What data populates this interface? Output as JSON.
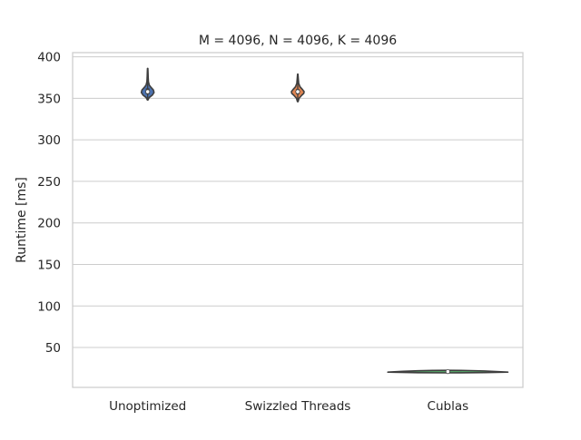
{
  "chart_data": {
    "type": "violin",
    "title": "M = 4096, N = 4096, K = 4096",
    "xlabel": "",
    "ylabel": "Runtime [ms]",
    "ylim": [
      2,
      405
    ],
    "yticks": [
      50,
      100,
      150,
      200,
      250,
      300,
      350,
      400
    ],
    "grid": true,
    "categories": [
      "Unoptimized",
      "Swizzled Threads",
      "Cublas"
    ],
    "series": [
      {
        "category": "Unoptimized",
        "color": "#4c72b0",
        "min": 348,
        "q1": 355,
        "median": 358,
        "q3": 362,
        "max": 386,
        "density": [
          [
            348,
            0.05
          ],
          [
            351,
            0.25
          ],
          [
            354,
            0.75
          ],
          [
            357,
            1.0
          ],
          [
            360,
            0.9
          ],
          [
            363,
            0.55
          ],
          [
            366,
            0.25
          ],
          [
            370,
            0.12
          ],
          [
            375,
            0.08
          ],
          [
            380,
            0.06
          ],
          [
            386,
            0.03
          ]
        ]
      },
      {
        "category": "Swizzled Threads",
        "color": "#dd8452",
        "min": 346,
        "q1": 355,
        "median": 358,
        "q3": 361,
        "max": 379,
        "density": [
          [
            346,
            0.05
          ],
          [
            350,
            0.2
          ],
          [
            353,
            0.55
          ],
          [
            356,
            0.95
          ],
          [
            358,
            1.0
          ],
          [
            361,
            0.7
          ],
          [
            364,
            0.35
          ],
          [
            368,
            0.15
          ],
          [
            373,
            0.09
          ],
          [
            379,
            0.03
          ]
        ]
      },
      {
        "category": "Cublas",
        "color": "#55a868",
        "min": 19.4,
        "q1": 20.3,
        "median": 21.0,
        "q3": 21.7,
        "max": 22.6,
        "density": [
          [
            19.4,
            0.25
          ],
          [
            20.0,
            0.7
          ],
          [
            20.5,
            0.95
          ],
          [
            21.0,
            1.0
          ],
          [
            21.5,
            0.9
          ],
          [
            22.0,
            0.55
          ],
          [
            22.6,
            0.2
          ]
        ]
      }
    ]
  }
}
